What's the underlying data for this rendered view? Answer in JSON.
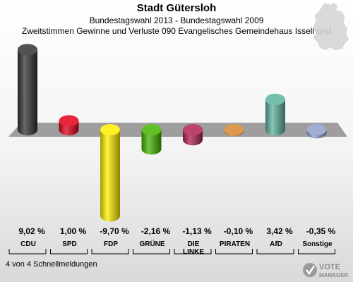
{
  "header": {
    "title": "Stadt Gütersloh",
    "subtitle": "Bundestagswahl 2013 - Bundestagswahl 2009",
    "subtitle2": "Zweitstimmen Gewinne und Verluste 090 Evangelisches Gemeindehaus Isselhorst"
  },
  "footer": {
    "text": "4 von 4 Schnellmeldungen"
  },
  "logo": {
    "line1": "VOTE",
    "line2": "MANAGER"
  },
  "chart_data": {
    "type": "bar",
    "categories": [
      "CDU",
      "SPD",
      "FDP",
      "GRÜNE",
      "DIE LINKE",
      "PIRATEN",
      "AfD",
      "Sonstige"
    ],
    "category_lines": [
      [
        "CDU"
      ],
      [
        "SPD"
      ],
      [
        "FDP"
      ],
      [
        "GRÜNE"
      ],
      [
        "DIE",
        "LINKE"
      ],
      [
        "PIRATEN"
      ],
      [
        "AfD"
      ],
      [
        "Sonstige"
      ]
    ],
    "values": [
      9.02,
      1.0,
      -9.7,
      -2.16,
      -1.13,
      -0.1,
      3.42,
      -0.35
    ],
    "value_labels": [
      "9,02 %",
      "1,00 %",
      "-9,70 %",
      "-2,16 %",
      "-1,13 %",
      "-0,10 %",
      "3,42 %",
      "-0,35 %"
    ],
    "colors": [
      "#333333",
      "#e2001a",
      "#ffed00",
      "#46b400",
      "#b0224f",
      "#d8882c",
      "#5eb3a0",
      "#8f9fcc"
    ],
    "ylim": [
      -9.7,
      9.02
    ],
    "grid": false,
    "legend": "none"
  }
}
